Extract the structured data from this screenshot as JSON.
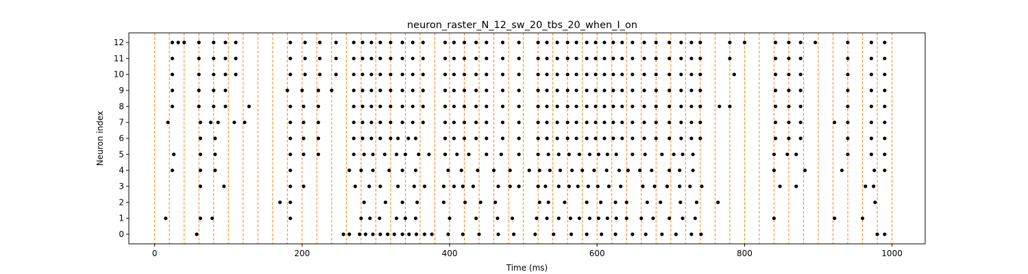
{
  "chart_data": {
    "type": "scatter",
    "title": "neuron_raster_N_12_sw_20_tbs_20_when_I_on",
    "xlabel": "Time (ms)",
    "ylabel": "Neuron index",
    "xlim": [
      -35,
      1045
    ],
    "ylim": [
      -0.6,
      12.6
    ],
    "xticks": [
      0,
      200,
      400,
      600,
      800,
      1000
    ],
    "yticks": [
      0,
      1,
      2,
      3,
      4,
      5,
      6,
      7,
      8,
      9,
      10,
      11,
      12
    ],
    "grid": false,
    "marker_color": "#000000",
    "vline_color": "#ff7f0e",
    "vlines_x": [
      0,
      20,
      40,
      60,
      80,
      100,
      120,
      140,
      160,
      180,
      200,
      220,
      240,
      260,
      280,
      300,
      320,
      340,
      360,
      380,
      400,
      420,
      440,
      460,
      480,
      500,
      520,
      540,
      560,
      580,
      600,
      620,
      640,
      660,
      680,
      700,
      720,
      740,
      760,
      780,
      800,
      820,
      840,
      860,
      880,
      900,
      920,
      940,
      960,
      980,
      1000
    ],
    "spikes": [
      {
        "neuron": 0,
        "times": [
          57,
          256,
          264,
          278,
          286,
          296,
          306,
          316,
          325,
          336,
          345,
          355,
          366,
          376,
          398,
          418,
          440,
          466,
          487,
          516,
          541,
          565,
          586,
          606,
          625,
          648,
          666,
          688,
          707,
          728,
          741,
          980,
          990
        ]
      },
      {
        "neuron": 1,
        "times": [
          15,
          62,
          78,
          184,
          280,
          292,
          305,
          328,
          340,
          354,
          400,
          436,
          465,
          485,
          518,
          532,
          548,
          564,
          576,
          590,
          602,
          614,
          626,
          640,
          660,
          676,
          698,
          716,
          733,
          840,
          922,
          960
        ]
      },
      {
        "neuron": 2,
        "times": [
          170,
          184,
          284,
          313,
          336,
          356,
          392,
          421,
          442,
          462,
          522,
          534,
          556,
          586,
          605,
          625,
          640,
          668,
          686,
          713,
          735,
          764,
          977
        ]
      },
      {
        "neuron": 3,
        "times": [
          62,
          94,
          184,
          202,
          272,
          291,
          306,
          330,
          352,
          366,
          392,
          406,
          418,
          432,
          466,
          482,
          494,
          520,
          530,
          548,
          562,
          574,
          588,
          601,
          616,
          632,
          662,
          678,
          695,
          712,
          726,
          742,
          848,
          870,
          964,
          975
        ]
      },
      {
        "neuron": 4,
        "times": [
          24,
          62,
          82,
          184,
          264,
          280,
          296,
          318,
          336,
          354,
          398,
          416,
          438,
          460,
          482,
          508,
          522,
          536,
          550,
          566,
          580,
          596,
          613,
          630,
          642,
          658,
          674,
          698,
          712,
          730,
          840,
          882,
          932,
          976,
          990
        ]
      },
      {
        "neuron": 5,
        "times": [
          26,
          62,
          82,
          184,
          202,
          222,
          270,
          284,
          296,
          312,
          328,
          340,
          358,
          372,
          394,
          410,
          426,
          450,
          470,
          494,
          520,
          534,
          548,
          562,
          576,
          590,
          602,
          614,
          626,
          648,
          665,
          688,
          704,
          716,
          730,
          840,
          858,
          870,
          940,
          972,
          990
        ]
      },
      {
        "neuron": 6,
        "times": [
          62,
          82,
          184,
          202,
          222,
          270,
          282,
          294,
          306,
          320,
          330,
          344,
          354,
          394,
          406,
          420,
          436,
          450,
          472,
          494,
          520,
          532,
          546,
          560,
          572,
          586,
          598,
          610,
          622,
          634,
          648,
          664,
          680,
          698,
          714,
          728,
          740,
          842,
          860,
          876,
          940,
          972,
          990
        ]
      },
      {
        "neuron": 7,
        "times": [
          18,
          62,
          76,
          86,
          108,
          122,
          184,
          202,
          222,
          270,
          282,
          294,
          306,
          320,
          336,
          350,
          364,
          394,
          406,
          420,
          436,
          450,
          472,
          494,
          520,
          532,
          546,
          560,
          572,
          586,
          598,
          610,
          622,
          634,
          648,
          664,
          680,
          698,
          714,
          728,
          740,
          842,
          860,
          876,
          922,
          940,
          972,
          990
        ]
      },
      {
        "neuron": 8,
        "times": [
          24,
          60,
          80,
          96,
          128,
          184,
          202,
          222,
          270,
          282,
          294,
          306,
          320,
          336,
          350,
          364,
          394,
          406,
          420,
          436,
          450,
          472,
          494,
          520,
          532,
          546,
          560,
          572,
          586,
          598,
          610,
          622,
          634,
          648,
          664,
          680,
          698,
          714,
          728,
          740,
          766,
          780,
          842,
          860,
          876,
          940,
          972,
          990
        ]
      },
      {
        "neuron": 9,
        "times": [
          24,
          60,
          80,
          96,
          180,
          200,
          222,
          240,
          270,
          282,
          294,
          306,
          320,
          336,
          350,
          364,
          394,
          406,
          420,
          436,
          450,
          472,
          494,
          520,
          532,
          546,
          560,
          572,
          586,
          598,
          610,
          622,
          634,
          648,
          664,
          680,
          698,
          714,
          728,
          740,
          842,
          860,
          876,
          940,
          972,
          990
        ]
      },
      {
        "neuron": 10,
        "times": [
          24,
          60,
          80,
          96,
          110,
          184,
          204,
          224,
          246,
          270,
          282,
          294,
          306,
          320,
          336,
          350,
          364,
          394,
          406,
          420,
          436,
          450,
          472,
          494,
          520,
          532,
          546,
          560,
          572,
          586,
          598,
          610,
          622,
          634,
          648,
          664,
          680,
          698,
          714,
          728,
          740,
          786,
          842,
          860,
          876,
          940,
          972,
          990
        ]
      },
      {
        "neuron": 11,
        "times": [
          24,
          60,
          80,
          96,
          110,
          184,
          204,
          224,
          246,
          270,
          282,
          294,
          306,
          320,
          336,
          350,
          364,
          394,
          406,
          420,
          436,
          450,
          472,
          494,
          520,
          532,
          546,
          560,
          572,
          586,
          598,
          610,
          622,
          634,
          648,
          664,
          680,
          698,
          714,
          728,
          740,
          780,
          842,
          860,
          876,
          940,
          972,
          990
        ]
      },
      {
        "neuron": 12,
        "times": [
          24,
          32,
          40,
          60,
          80,
          96,
          110,
          184,
          204,
          224,
          246,
          270,
          282,
          294,
          306,
          320,
          336,
          350,
          364,
          394,
          406,
          420,
          436,
          450,
          472,
          494,
          520,
          532,
          546,
          560,
          572,
          586,
          598,
          610,
          622,
          634,
          648,
          664,
          680,
          698,
          714,
          728,
          740,
          780,
          800,
          842,
          860,
          876,
          896,
          940,
          972,
          990
        ]
      }
    ]
  }
}
